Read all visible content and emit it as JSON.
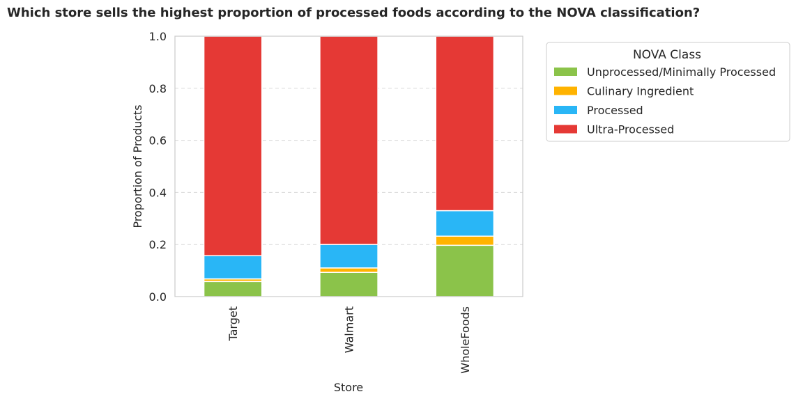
{
  "chart_data": {
    "type": "bar",
    "stacked": true,
    "title": "Which store sells the highest proportion of processed foods according to the NOVA classification?",
    "xlabel": "Store",
    "ylabel": "Proportion of Products",
    "categories": [
      "Target",
      "Walmart",
      "WholeFoods"
    ],
    "series": [
      {
        "name": "Unprocessed/Minimally Processed",
        "color": "#8bc34a",
        "values": [
          0.058,
          0.093,
          0.197
        ]
      },
      {
        "name": "Culinary Ingredient",
        "color": "#ffb300",
        "values": [
          0.01,
          0.017,
          0.035
        ]
      },
      {
        "name": "Processed",
        "color": "#29b6f6",
        "values": [
          0.089,
          0.09,
          0.098
        ]
      },
      {
        "name": "Ultra-Processed",
        "color": "#e53935",
        "values": [
          0.843,
          0.8,
          0.67
        ]
      }
    ],
    "ylim": [
      0,
      1.0
    ],
    "yticks": [
      "0.0",
      "0.2",
      "0.4",
      "0.6",
      "0.8",
      "1.0"
    ],
    "grid": "y-dashed",
    "legend": {
      "title": "NOVA Class",
      "placement": "outside-right"
    }
  }
}
